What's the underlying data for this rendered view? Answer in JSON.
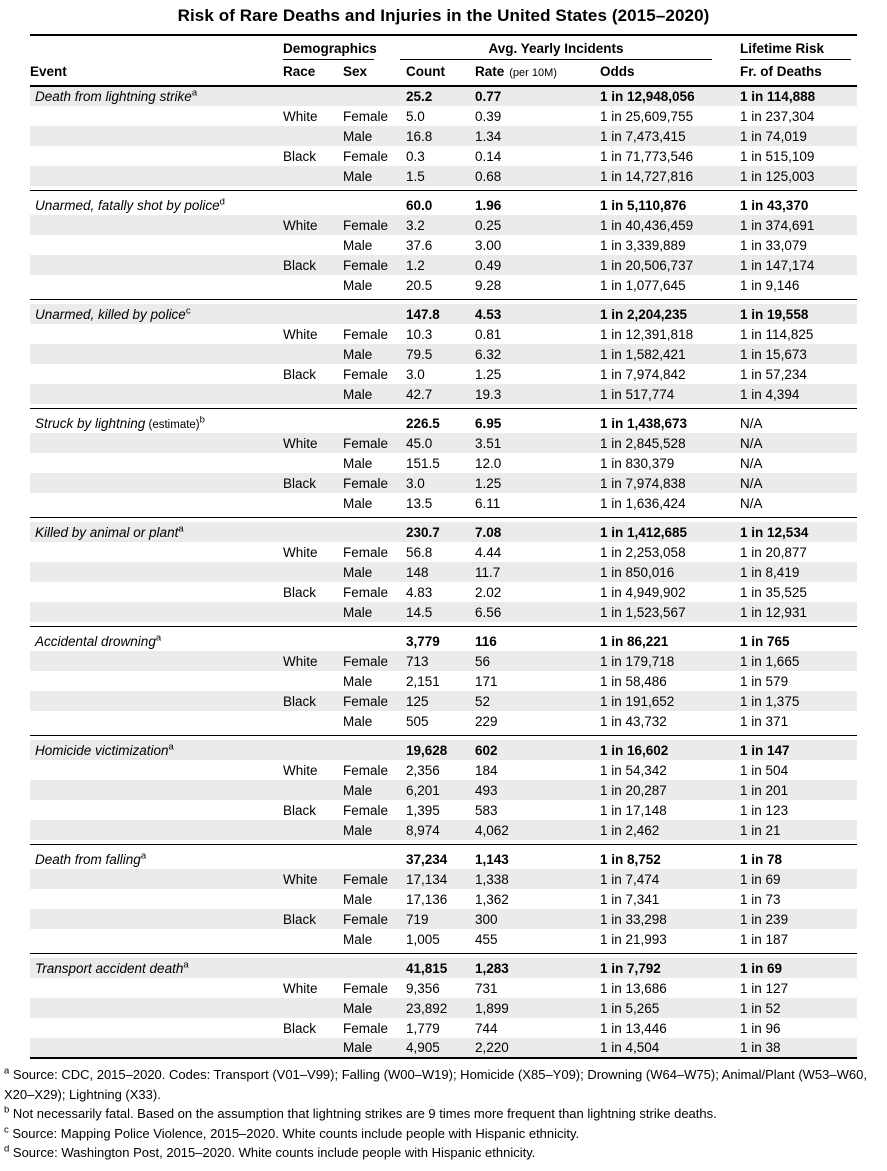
{
  "title": "Risk of Rare Deaths and Injuries in the United States (2015–2020)",
  "colors": {
    "row_stripe": "#ebebeb",
    "rule": "#000000",
    "text": "#000000",
    "background": "#ffffff"
  },
  "header": {
    "event": "Event",
    "demographics": "Demographics",
    "race": "Race",
    "sex": "Sex",
    "incidents": "Avg. Yearly Incidents",
    "count": "Count",
    "rate": "Rate",
    "rate_unit": "(per 10M)",
    "odds": "Odds",
    "lifetime": "Lifetime Risk",
    "fr": "Fr. of Deaths"
  },
  "sections": [
    {
      "event": "Death from lightning strike",
      "suffix": "",
      "note": "a",
      "total": {
        "count": "25.2",
        "rate": "0.77",
        "odds": "1 in 12,948,056",
        "fr": "1 in 114,888"
      },
      "rows": [
        {
          "race": "White",
          "sex": "Female",
          "count": "5.0",
          "rate": "0.39",
          "odds": "1 in 25,609,755",
          "fr": "1 in 237,304"
        },
        {
          "race": "",
          "sex": "Male",
          "count": "16.8",
          "rate": "1.34",
          "odds": "1 in 7,473,415",
          "fr": "1 in 74,019"
        },
        {
          "race": "Black",
          "sex": "Female",
          "count": "0.3",
          "rate": "0.14",
          "odds": "1 in 71,773,546",
          "fr": "1 in 515,109"
        },
        {
          "race": "",
          "sex": "Male",
          "count": "1.5",
          "rate": "0.68",
          "odds": "1 in 14,727,816",
          "fr": "1 in 125,003"
        }
      ]
    },
    {
      "event": "Unarmed, fatally shot by police",
      "suffix": "",
      "note": "d",
      "total": {
        "count": "60.0",
        "rate": "1.96",
        "odds": "1 in 5,110,876",
        "fr": "1 in 43,370"
      },
      "rows": [
        {
          "race": "White",
          "sex": "Female",
          "count": "3.2",
          "rate": "0.25",
          "odds": "1 in 40,436,459",
          "fr": "1 in 374,691"
        },
        {
          "race": "",
          "sex": "Male",
          "count": "37.6",
          "rate": "3.00",
          "odds": "1 in 3,339,889",
          "fr": "1 in 33,079"
        },
        {
          "race": "Black",
          "sex": "Female",
          "count": "1.2",
          "rate": "0.49",
          "odds": "1 in 20,506,737",
          "fr": "1 in 147,174"
        },
        {
          "race": "",
          "sex": "Male",
          "count": "20.5",
          "rate": "9.28",
          "odds": "1 in 1,077,645",
          "fr": "1 in 9,146"
        }
      ]
    },
    {
      "event": "Unarmed, killed by police",
      "suffix": "",
      "note": "c",
      "total": {
        "count": "147.8",
        "rate": "4.53",
        "odds": "1 in 2,204,235",
        "fr": "1 in 19,558"
      },
      "rows": [
        {
          "race": "White",
          "sex": "Female",
          "count": "10.3",
          "rate": "0.81",
          "odds": "1 in 12,391,818",
          "fr": "1 in 114,825"
        },
        {
          "race": "",
          "sex": "Male",
          "count": "79.5",
          "rate": "6.32",
          "odds": "1 in 1,582,421",
          "fr": "1 in 15,673"
        },
        {
          "race": "Black",
          "sex": "Female",
          "count": "3.0",
          "rate": "1.25",
          "odds": "1 in 7,974,842",
          "fr": "1 in 57,234"
        },
        {
          "race": "",
          "sex": "Male",
          "count": "42.7",
          "rate": "19.3",
          "odds": "1 in 517,774",
          "fr": "1 in 4,394"
        }
      ]
    },
    {
      "event": "Struck by lightning",
      "suffix": "(estimate)",
      "note": "b",
      "total": {
        "count": "226.5",
        "rate": "6.95",
        "odds": "1 in 1,438,673",
        "fr": "N/A"
      },
      "rows": [
        {
          "race": "White",
          "sex": "Female",
          "count": "45.0",
          "rate": "3.51",
          "odds": "1 in 2,845,528",
          "fr": "N/A"
        },
        {
          "race": "",
          "sex": "Male",
          "count": "151.5",
          "rate": "12.0",
          "odds": "1 in 830,379",
          "fr": "N/A"
        },
        {
          "race": "Black",
          "sex": "Female",
          "count": "3.0",
          "rate": "1.25",
          "odds": "1 in 7,974,838",
          "fr": "N/A"
        },
        {
          "race": "",
          "sex": "Male",
          "count": "13.5",
          "rate": "6.11",
          "odds": "1 in 1,636,424",
          "fr": "N/A"
        }
      ]
    },
    {
      "event": "Killed by animal or plant",
      "suffix": "",
      "note": "a",
      "total": {
        "count": "230.7",
        "rate": "7.08",
        "odds": "1 in 1,412,685",
        "fr": "1 in 12,534"
      },
      "rows": [
        {
          "race": "White",
          "sex": "Female",
          "count": "56.8",
          "rate": "4.44",
          "odds": "1 in 2,253,058",
          "fr": "1 in 20,877"
        },
        {
          "race": "",
          "sex": "Male",
          "count": "148",
          "rate": "11.7",
          "odds": "1 in 850,016",
          "fr": "1 in 8,419"
        },
        {
          "race": "Black",
          "sex": "Female",
          "count": "4.83",
          "rate": "2.02",
          "odds": "1 in 4,949,902",
          "fr": "1 in 35,525"
        },
        {
          "race": "",
          "sex": "Male",
          "count": "14.5",
          "rate": "6.56",
          "odds": "1 in 1,523,567",
          "fr": "1 in 12,931"
        }
      ]
    },
    {
      "event": "Accidental drowning",
      "suffix": "",
      "note": "a",
      "total": {
        "count": "3,779",
        "rate": "116",
        "odds": "1 in 86,221",
        "fr": "1 in 765"
      },
      "rows": [
        {
          "race": "White",
          "sex": "Female",
          "count": "713",
          "rate": "56",
          "odds": "1 in 179,718",
          "fr": "1 in 1,665"
        },
        {
          "race": "",
          "sex": "Male",
          "count": "2,151",
          "rate": "171",
          "odds": "1 in 58,486",
          "fr": "1 in 579"
        },
        {
          "race": "Black",
          "sex": "Female",
          "count": "125",
          "rate": "52",
          "odds": "1 in 191,652",
          "fr": "1 in 1,375"
        },
        {
          "race": "",
          "sex": "Male",
          "count": "505",
          "rate": "229",
          "odds": "1 in 43,732",
          "fr": "1 in 371"
        }
      ]
    },
    {
      "event": "Homicide victimization",
      "suffix": "",
      "note": "a",
      "total": {
        "count": "19,628",
        "rate": "602",
        "odds": "1 in 16,602",
        "fr": "1 in 147"
      },
      "rows": [
        {
          "race": "White",
          "sex": "Female",
          "count": "2,356",
          "rate": "184",
          "odds": "1 in 54,342",
          "fr": "1 in 504"
        },
        {
          "race": "",
          "sex": "Male",
          "count": "6,201",
          "rate": "493",
          "odds": "1 in 20,287",
          "fr": "1 in 201"
        },
        {
          "race": "Black",
          "sex": "Female",
          "count": "1,395",
          "rate": "583",
          "odds": "1 in 17,148",
          "fr": "1 in 123"
        },
        {
          "race": "",
          "sex": "Male",
          "count": "8,974",
          "rate": "4,062",
          "odds": "1 in 2,462",
          "fr": "1 in 21"
        }
      ]
    },
    {
      "event": "Death from falling",
      "suffix": "",
      "note": "a",
      "total": {
        "count": "37,234",
        "rate": "1,143",
        "odds": "1 in 8,752",
        "fr": "1 in 78"
      },
      "rows": [
        {
          "race": "White",
          "sex": "Female",
          "count": "17,134",
          "rate": "1,338",
          "odds": "1 in 7,474",
          "fr": "1 in 69"
        },
        {
          "race": "",
          "sex": "Male",
          "count": "17,136",
          "rate": "1,362",
          "odds": "1 in 7,341",
          "fr": "1 in 73"
        },
        {
          "race": "Black",
          "sex": "Female",
          "count": "719",
          "rate": "300",
          "odds": "1 in 33,298",
          "fr": "1 in 239"
        },
        {
          "race": "",
          "sex": "Male",
          "count": "1,005",
          "rate": "455",
          "odds": "1 in 21,993",
          "fr": "1 in 187"
        }
      ]
    },
    {
      "event": "Transport accident death",
      "suffix": "",
      "note": "a",
      "total": {
        "count": "41,815",
        "rate": "1,283",
        "odds": "1 in 7,792",
        "fr": "1 in 69"
      },
      "rows": [
        {
          "race": "White",
          "sex": "Female",
          "count": "9,356",
          "rate": "731",
          "odds": "1 in 13,686",
          "fr": "1 in 127"
        },
        {
          "race": "",
          "sex": "Male",
          "count": "23,892",
          "rate": "1,899",
          "odds": "1 in 5,265",
          "fr": "1 in 52"
        },
        {
          "race": "Black",
          "sex": "Female",
          "count": "1,779",
          "rate": "744",
          "odds": "1 in 13,446",
          "fr": "1 in 96"
        },
        {
          "race": "",
          "sex": "Male",
          "count": "4,905",
          "rate": "2,220",
          "odds": "1 in 4,504",
          "fr": "1 in 38"
        }
      ]
    }
  ],
  "footnotes": [
    {
      "marker": "a",
      "text": "Source: CDC, 2015–2020. Codes: Transport (V01–V99); Falling (W00–W19); Homicide (X85–Y09); Drowning (W64–W75); Animal/Plant (W53–W60, X20–X29); Lightning (X33)."
    },
    {
      "marker": "b",
      "text": "Not necessarily fatal. Based on the assumption that lightning strikes are 9 times more frequent than lightning strike deaths."
    },
    {
      "marker": "c",
      "text": "Source: Mapping Police Violence, 2015–2020. White counts include people with Hispanic ethnicity."
    },
    {
      "marker": "d",
      "text": "Source: Washington Post, 2015–2020. White counts include people with Hispanic ethnicity."
    }
  ]
}
